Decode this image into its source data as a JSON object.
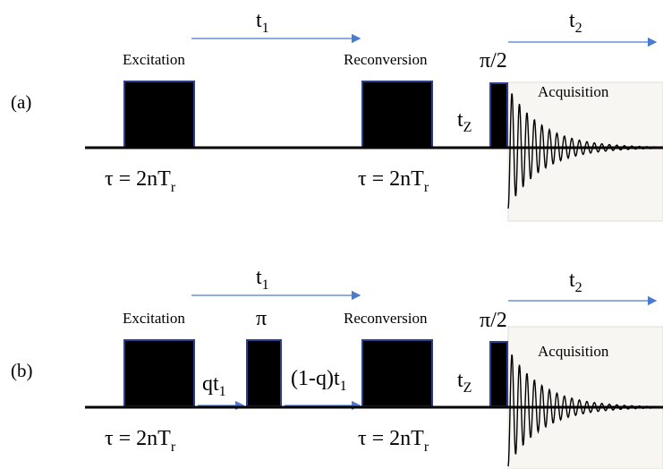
{
  "panel_a": {
    "label": "(a)",
    "t1": "t",
    "t1_sub": "1",
    "t2": "t",
    "t2_sub": "2",
    "excitation": "Excitation",
    "reconversion": "Reconversion",
    "pi_half": "π/2",
    "tz": "t",
    "tz_sub": "Z",
    "acquisition": "Acquisition",
    "tau_exc": "τ = 2nT",
    "tau_exc_sub": "r",
    "tau_rec": "τ = 2nT",
    "tau_rec_sub": "r"
  },
  "panel_b": {
    "label": "(b)",
    "t1": "t",
    "t1_sub": "1",
    "t2": "t",
    "t2_sub": "2",
    "excitation": "Excitation",
    "pi": "π",
    "reconversion": "Reconversion",
    "pi_half": "π/2",
    "qt1": "qt",
    "qt1_sub": "1",
    "one_minus_q": "(1-q)t",
    "one_minus_q_sub": "1",
    "tz": "t",
    "tz_sub": "Z",
    "acquisition": "Acquisition",
    "tau_exc": "τ = 2nT",
    "tau_exc_sub": "r",
    "tau_rec": "τ = 2nT",
    "tau_rec_sub": "r"
  },
  "colors": {
    "arrow": "#4a7bd0",
    "pulse": "#000000",
    "pulse_border": "#2b3f8c"
  }
}
